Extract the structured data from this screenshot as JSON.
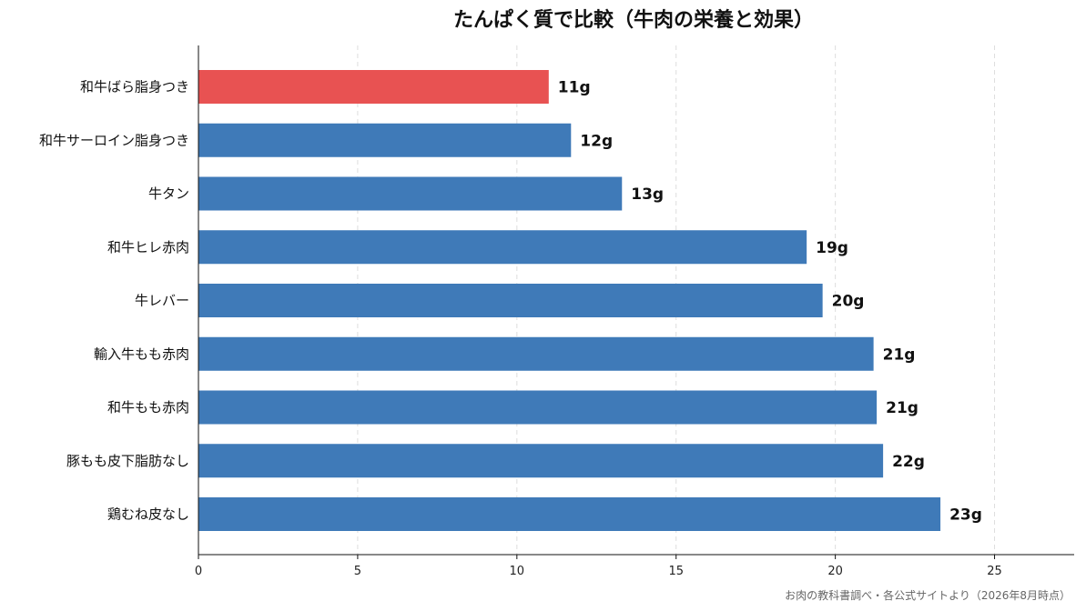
{
  "chart_data": {
    "type": "bar",
    "orientation": "horizontal",
    "title": "たんぱく質で比較（牛肉の栄養と効果）",
    "categories": [
      "和牛ばら脂身つき",
      "和牛サーロイン脂身つき",
      "牛タン",
      "和牛ヒレ赤肉",
      "牛レバー",
      "輸入牛もも赤肉",
      "和牛もも赤肉",
      "豚もも皮下脂肪なし",
      "鶏むね皮なし"
    ],
    "values": [
      11.0,
      11.7,
      13.3,
      19.1,
      19.6,
      21.2,
      21.3,
      21.5,
      23.3
    ],
    "value_labels": [
      "11g",
      "12g",
      "13g",
      "19g",
      "20g",
      "21g",
      "21g",
      "22g",
      "23g"
    ],
    "xlim": [
      0,
      27.5
    ],
    "xticks": [
      0,
      5,
      10,
      15,
      20,
      25
    ],
    "grid": "x-dashed",
    "colors": {
      "highlight": "#e85252",
      "default": "#3f7ab8"
    },
    "highlight_index": 0,
    "source": "お肉の教科書調べ・各公式サイトより（2026年8月時点）"
  }
}
